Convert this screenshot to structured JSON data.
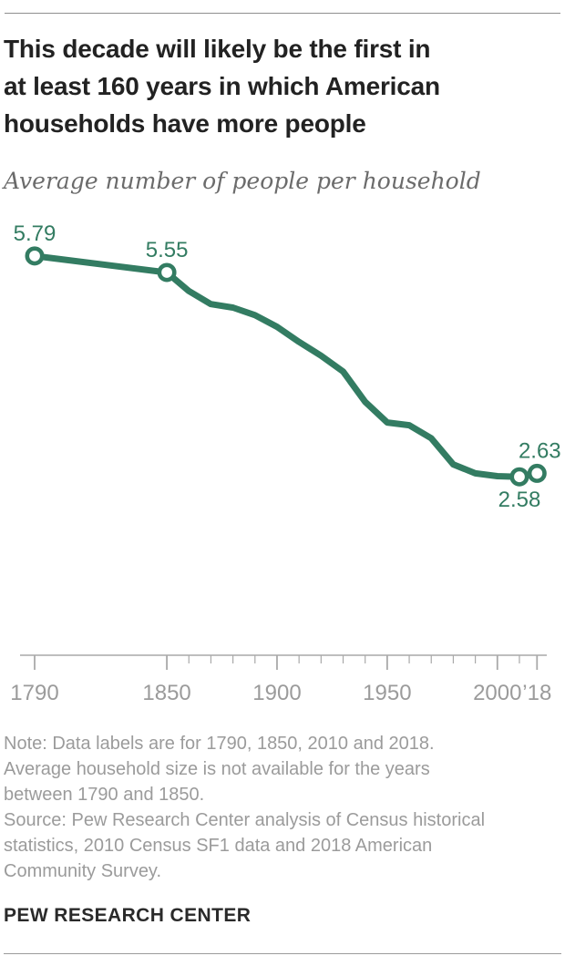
{
  "page": {
    "title_lines": [
      "This decade will likely be the first in",
      "at least 160 years in which American",
      "households have more people"
    ],
    "subtitle": "Average number of people per household",
    "note_lines": [
      "Note: Data labels are for 1790, 1850, 2010 and 2018.",
      "Average household size is not available for the years",
      "between 1790 and 1850.",
      "Source: Pew Research Center analysis of Census historical",
      "statistics, 2010 Census SF1 data and 2018 American",
      "Community Survey."
    ],
    "footer": "PEW RESEARCH CENTER"
  },
  "colors": {
    "line_green": "#337c62",
    "title_text": "#222222",
    "subtitle_text": "#6b6b6b",
    "note_text": "#9b9b9b",
    "axis": "#a9a9a9",
    "axis_label": "#9b9b9b",
    "footer_text": "#2a2a2a",
    "marker_fill": "#ffffff"
  },
  "chart_data": {
    "type": "line",
    "title": "This decade will likely be the first in at least 160 years in which American households have more people",
    "subtitle": "Average number of people per household",
    "xlabel": "",
    "ylabel": "Average number of people per household",
    "x": [
      1790,
      1850,
      1860,
      1870,
      1880,
      1890,
      1900,
      1910,
      1920,
      1930,
      1940,
      1950,
      1960,
      1970,
      1980,
      1990,
      2000,
      2010,
      2018
    ],
    "values": [
      5.79,
      5.55,
      5.28,
      5.09,
      5.04,
      4.93,
      4.76,
      4.54,
      4.34,
      4.11,
      3.67,
      3.37,
      3.33,
      3.14,
      2.76,
      2.63,
      2.59,
      2.58,
      2.63
    ],
    "xlim": [
      1790,
      2018
    ],
    "ylim": [
      0,
      6.2
    ],
    "grid": false,
    "legend": "none",
    "data_gap_note": "no data between 1790 and 1850 (straight segment)",
    "marker_years": [
      1790,
      1850,
      2010,
      2018
    ],
    "point_labels": [
      {
        "year": 1790,
        "text": "5.79",
        "position": "above"
      },
      {
        "year": 1850,
        "text": "5.55",
        "position": "above"
      },
      {
        "year": 2010,
        "text": "2.58",
        "position": "below"
      },
      {
        "year": 2018,
        "text": "2.63",
        "position": "above"
      }
    ],
    "x_axis": {
      "major_ticks": [
        1790,
        1850,
        1900,
        1950,
        2000,
        2018
      ],
      "major_labels": [
        "1790",
        "1850",
        "1900",
        "1950",
        "2000",
        "’18"
      ],
      "minor_ticks": [
        1860,
        1870,
        1880,
        1890,
        1910,
        1920,
        1930,
        1940,
        1960,
        1970,
        1980,
        1990,
        2010
      ]
    }
  }
}
